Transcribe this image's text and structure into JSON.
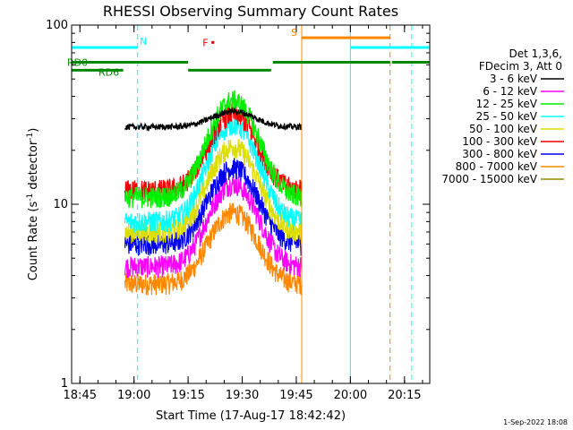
{
  "chart_data": {
    "type": "line",
    "title": "RHESSI Observing Summary Count Rates",
    "xlabel": "Start Time (17-Aug-17 18:42:42)",
    "ylabel": "Count Rate (s",
    "ylabel_sup1": "-1",
    "ylabel_mid": " detector",
    "ylabel_sup2": "-1",
    "ylabel_end": ")",
    "yscale": "log",
    "ylim": [
      1,
      100
    ],
    "y_ticks": [
      {
        "value": 1,
        "label": "1"
      },
      {
        "value": 10,
        "label": "10"
      },
      {
        "value": 100,
        "label": "100"
      }
    ],
    "xlim": [
      "18:42:42",
      "20:22:00"
    ],
    "x_ticks": [
      "18:45",
      "19:00",
      "19:15",
      "19:30",
      "19:45",
      "20:00",
      "20:15"
    ],
    "legend_header": [
      "Det 1,3,6,",
      "FDecim 3, Att 0"
    ],
    "legend_placement": "right",
    "grid": false,
    "series": [
      {
        "name": "3 - 6 keV",
        "color": "#000000",
        "baseline": 27,
        "peak": 33
      },
      {
        "name": "6 - 12 keV",
        "color": "#ff00ff",
        "baseline": 4.5,
        "peak": 13
      },
      {
        "name": "12 - 25 keV",
        "color": "#00ee00",
        "baseline": 11,
        "peak": 38
      },
      {
        "name": "25 - 50 keV",
        "color": "#00ffff",
        "baseline": 8,
        "peak": 28
      },
      {
        "name": "50 - 100 keV",
        "color": "#dddd00",
        "baseline": 7,
        "peak": 21
      },
      {
        "name": "100 - 300 keV",
        "color": "#ee0000",
        "baseline": 12,
        "peak": 32
      },
      {
        "name": "300 - 800 keV",
        "color": "#0000ee",
        "baseline": 6,
        "peak": 16
      },
      {
        "name": "800 - 7000 keV",
        "color": "#ff8800",
        "baseline": 3.6,
        "peak": 9
      },
      {
        "name": "7000 - 15000 keV",
        "color": "#998800"
      }
    ],
    "data_window": [
      "18:57:30",
      "19:46:30"
    ],
    "bars": [
      {
        "label": "N",
        "color": "#00ffff",
        "y": 75,
        "segments": [
          [
            "18:42:42",
            "19:01:00"
          ],
          [
            "20:00:00",
            "20:22:00"
          ]
        ]
      },
      {
        "label": "F",
        "color": "#ee0000",
        "y": 80,
        "segments": [
          [
            "19:19:00",
            "19:20:00"
          ]
        ]
      },
      {
        "label": "S",
        "color": "#ff8800",
        "y": 85,
        "segments": [
          [
            "19:46:30",
            "20:11:00"
          ]
        ]
      },
      {
        "label": "RD0",
        "color": "#008800",
        "y": 62,
        "segments": [
          [
            "18:42:42",
            "19:15:00"
          ],
          [
            "19:38:30",
            "20:11:00"
          ],
          [
            "20:11:30",
            "20:22:00"
          ]
        ]
      },
      {
        "label": "RD6",
        "color": "#008800",
        "y": 56,
        "segments": [
          [
            "18:42:42",
            "18:57:00"
          ],
          [
            "19:15:00",
            "19:38:00"
          ]
        ]
      }
    ],
    "vlines": [
      {
        "time": "18:42:42",
        "color": "#00ffff",
        "style": "solid"
      },
      {
        "time": "19:01:00",
        "color": "#00ffff",
        "style": "dashed"
      },
      {
        "time": "19:46:30",
        "color": "#ff8800",
        "style": "solid"
      },
      {
        "time": "20:00:00",
        "color": "#00ffff",
        "style": "solid"
      },
      {
        "time": "20:11:00",
        "color": "#ff8800",
        "style": "dashed"
      },
      {
        "time": "20:17:00",
        "color": "#00ffff",
        "style": "dashed"
      }
    ],
    "footer": "1-Sep-2022 18:08"
  }
}
